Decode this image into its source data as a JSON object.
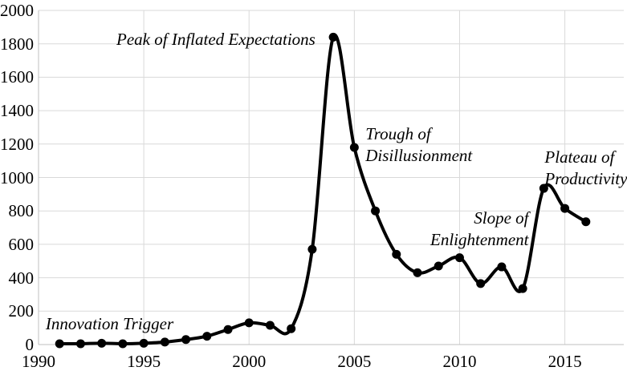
{
  "chart_data": {
    "type": "line",
    "title": "",
    "xlabel": "",
    "ylabel": "",
    "x": [
      1991,
      1992,
      1993,
      1994,
      1995,
      1996,
      1997,
      1998,
      1999,
      2000,
      2001,
      2002,
      2003,
      2004,
      2005,
      2006,
      2007,
      2008,
      2009,
      2010,
      2011,
      2012,
      2013,
      2014,
      2015,
      2016
    ],
    "values": [
      5,
      5,
      8,
      5,
      8,
      15,
      30,
      50,
      90,
      130,
      115,
      95,
      570,
      1840,
      1180,
      800,
      540,
      430,
      470,
      520,
      365,
      465,
      335,
      935,
      815,
      735
    ],
    "x_domain": [
      1990,
      2017.8
    ],
    "y_domain": [
      0,
      2000
    ],
    "x_ticks": [
      1990,
      1995,
      2000,
      2005,
      2010,
      2015
    ],
    "y_ticks": [
      0,
      200,
      400,
      600,
      800,
      1000,
      1200,
      1400,
      1600,
      1800,
      2000
    ],
    "grid": true,
    "legend": "none",
    "smooth": true,
    "colors": {
      "line": "#000000",
      "marker": "#000000",
      "grid": "#d9d9d9",
      "axis": "#bfbfbf",
      "background": "#ffffff",
      "text": "#000000"
    },
    "annotations": [
      {
        "lines": [
          "Innovation Trigger"
        ],
        "year": 1990.34,
        "value": 185,
        "align": "left"
      },
      {
        "lines": [
          "Peak of Inflated Expectations"
        ],
        "year": 1993.7,
        "value": 1890,
        "align": "left"
      },
      {
        "lines": [
          "Trough of",
          "Disillusionment"
        ],
        "year": 2005.53,
        "value": 1324,
        "align": "left"
      },
      {
        "lines": [
          "Slope of",
          "Enlightenment"
        ],
        "year": 2013.28,
        "value": 820,
        "align": "right"
      },
      {
        "lines": [
          "Plateau of",
          "Productivity"
        ],
        "year": 2014.04,
        "value": 1184,
        "align": "left"
      }
    ]
  }
}
